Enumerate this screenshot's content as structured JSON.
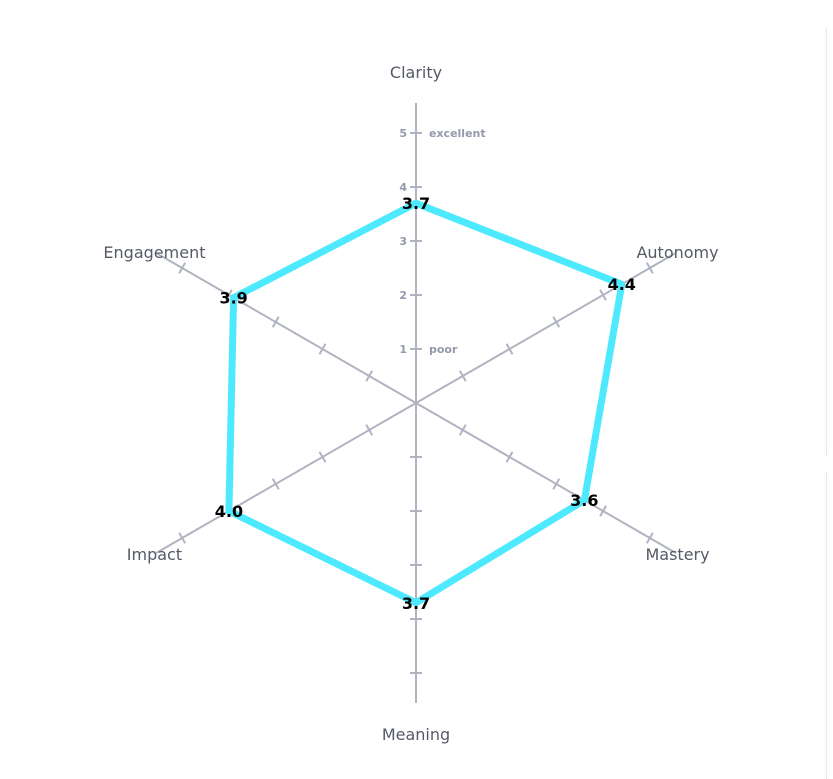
{
  "chart_data": {
    "type": "radar",
    "axes": [
      "Clarity",
      "Autonomy",
      "Mastery",
      "Meaning",
      "Impact",
      "Engagement"
    ],
    "values": [
      3.7,
      4.4,
      3.6,
      3.7,
      4.0,
      3.9
    ],
    "value_labels": [
      "3.7",
      "4.4",
      "3.6",
      "3.7",
      "4.0",
      "3.9"
    ],
    "rlim": [
      0,
      5
    ],
    "ticks": [
      "1",
      "2",
      "3",
      "4",
      "5"
    ],
    "tick_words": {
      "low": "poor",
      "high": "excellent"
    },
    "grid": false,
    "colors": {
      "series": "#4deaff",
      "axis": "#b0b3c1",
      "tick_text": "#9499ab",
      "label": "#555a66"
    }
  }
}
